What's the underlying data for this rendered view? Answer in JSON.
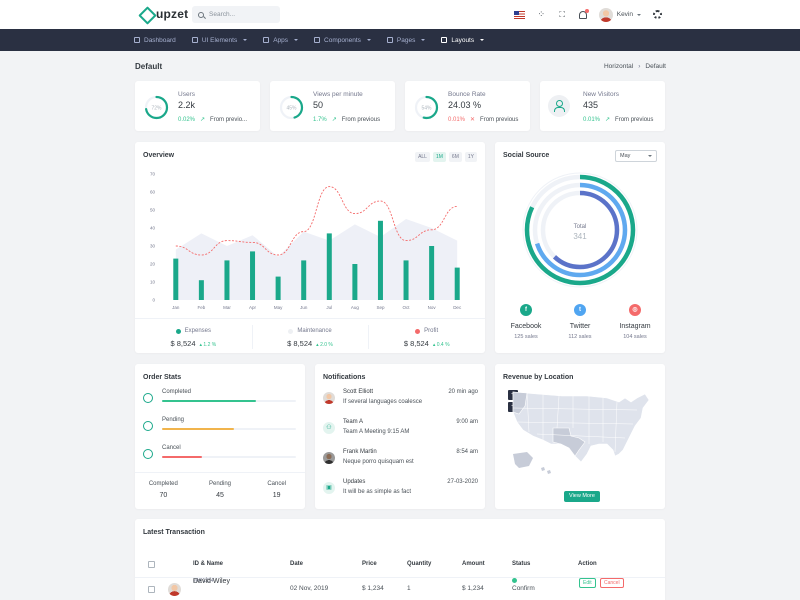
{
  "header": {
    "logo_text": "upzet",
    "search_placeholder": "Search...",
    "user_name": "Kevin",
    "icons": [
      "search-icon",
      "us-flag-icon",
      "apps-grid-icon",
      "fullscreen-icon",
      "bell-icon",
      "gear-icon"
    ]
  },
  "nav": {
    "items": [
      {
        "label": "Dashboard",
        "icon": "home-icon",
        "caret": false
      },
      {
        "label": "UI Elements",
        "icon": "layers-icon",
        "caret": true
      },
      {
        "label": "Apps",
        "icon": "apps-icon",
        "caret": true
      },
      {
        "label": "Components",
        "icon": "components-icon",
        "caret": true
      },
      {
        "label": "Pages",
        "icon": "pages-icon",
        "caret": true
      },
      {
        "label": "Layouts",
        "icon": "layout-icon",
        "caret": true
      }
    ]
  },
  "page": {
    "title": "Default",
    "breadcrumb": [
      "Horizontal",
      "Default"
    ]
  },
  "stats": [
    {
      "label": "Users",
      "value": "2.2k",
      "ring": "72%",
      "ring_pct": 72,
      "ring_color": "#1aa88a",
      "change": "0.02%",
      "dir": "up",
      "from": "From previo..."
    },
    {
      "label": "Views per minute",
      "value": "50",
      "ring": "45%",
      "ring_pct": 45,
      "ring_color": "#1aa88a",
      "change": "1.7%",
      "dir": "up",
      "from": "From previous"
    },
    {
      "label": "Bounce Rate",
      "value": "24.03 %",
      "ring": "54%",
      "ring_pct": 54,
      "ring_color": "#1aa88a",
      "change": "0.01%",
      "dir": "down",
      "from": "From previous"
    },
    {
      "label": "New Visitors",
      "value": "435",
      "change": "0.01%",
      "dir": "up",
      "from": "From previous"
    }
  ],
  "overview": {
    "title": "Overview",
    "filters": [
      "ALL",
      "1M",
      "6M",
      "1Y"
    ],
    "active_filter": "1M",
    "footer": [
      {
        "name": "Expenses",
        "value": "$ 8,524",
        "change": "1.2 %",
        "color": "#1aa88a"
      },
      {
        "name": "Maintenance",
        "value": "$ 8,524",
        "change": "2.0 %",
        "color": "#eef0f3"
      },
      {
        "name": "Profit",
        "value": "$ 8,524",
        "change": "0.4 %",
        "color": "#f46a6a"
      }
    ]
  },
  "chart_data": {
    "type": "bar",
    "categories": [
      "Jan",
      "Feb",
      "Mar",
      "Apr",
      "May",
      "Jun",
      "Jul",
      "Aug",
      "Sep",
      "Oct",
      "Nov",
      "Dec"
    ],
    "ylim": [
      0,
      70
    ],
    "yticks": [
      0,
      10,
      20,
      30,
      40,
      50,
      60,
      70
    ],
    "series": [
      {
        "kind": "bar",
        "color": "#1aa88a",
        "values": [
          23,
          11,
          22,
          27,
          13,
          22,
          37,
          20,
          44,
          22,
          30,
          18
        ]
      },
      {
        "kind": "area",
        "color": "#eef0f7",
        "values": [
          28,
          37,
          30,
          36,
          24,
          38,
          33,
          42,
          35,
          45,
          40,
          33
        ]
      },
      {
        "kind": "line",
        "color": "#f46a6a",
        "dashed": true,
        "values": [
          30,
          25,
          33,
          32,
          25,
          38,
          63,
          48,
          55,
          33,
          39,
          52
        ]
      }
    ]
  },
  "social": {
    "title": "Social Source",
    "period": "May",
    "total_label": "Total",
    "total_value": "341",
    "rings": [
      {
        "value": 82,
        "color": "#1aa88a"
      },
      {
        "value": 70,
        "color": "#5fa9ef"
      },
      {
        "value": 62,
        "color": "#5b73c9"
      }
    ],
    "sources": [
      {
        "name": "Facebook",
        "sales": "125 sales",
        "color": "#1aa88a",
        "glyph": "f",
        "icon": "facebook-icon"
      },
      {
        "name": "Twitter",
        "sales": "112 sales",
        "color": "#50a5f1",
        "glyph": "t",
        "icon": "twitter-icon"
      },
      {
        "name": "Instagram",
        "sales": "104 sales",
        "color": "#f46a6a",
        "glyph": "◎",
        "icon": "instagram-icon"
      }
    ]
  },
  "orders": {
    "title": "Order Stats",
    "items": [
      {
        "label": "Completed",
        "fraction": 0.7,
        "color": "#34c38f",
        "icon": "check-circle-icon"
      },
      {
        "label": "Pending",
        "fraction": 0.54,
        "color": "#f1b44c",
        "icon": "calendar-icon"
      },
      {
        "label": "Cancel",
        "fraction": 0.3,
        "color": "#f46a6a",
        "icon": "cancel-circle-icon"
      }
    ],
    "totals": [
      {
        "label": "Completed",
        "value": "70"
      },
      {
        "label": "Pending",
        "value": "45"
      },
      {
        "label": "Cancel",
        "value": "19"
      }
    ]
  },
  "notifications": {
    "title": "Notifications",
    "items": [
      {
        "name": "Scott Elliott",
        "message": "If several languages coalesce",
        "time": "20 min ago",
        "avatar": "photo",
        "icon": "avatar"
      },
      {
        "name": "Team A",
        "message": "Team A Meeting 9:15 AM",
        "time": "9:00 am",
        "avatar": "icon",
        "icon": "team-icon"
      },
      {
        "name": "Frank Martin",
        "message": "Neque porro quisquam est",
        "time": "8:54 am",
        "avatar": "photo2",
        "icon": "avatar"
      },
      {
        "name": "Updates",
        "message": "It will be as simple as fact",
        "time": "27-03-2020",
        "avatar": "icon",
        "icon": "update-icon"
      }
    ]
  },
  "revenue": {
    "title": "Revenue by Location",
    "zoom_in": "+",
    "zoom_out": "−",
    "button": "View More"
  },
  "transactions": {
    "title": "Latest Transaction",
    "columns": [
      "ID & Name",
      "Date",
      "Price",
      "Quantity",
      "Amount",
      "Status",
      "Action"
    ],
    "rows": [
      {
        "id": "#AP1234",
        "name": "David Wiley",
        "date": "02 Nov, 2019",
        "price": "$ 1,234",
        "quantity": "1",
        "amount": "$ 1,234",
        "status": "Confirm",
        "edit": "Edit",
        "cancel": "Cancel"
      }
    ]
  }
}
